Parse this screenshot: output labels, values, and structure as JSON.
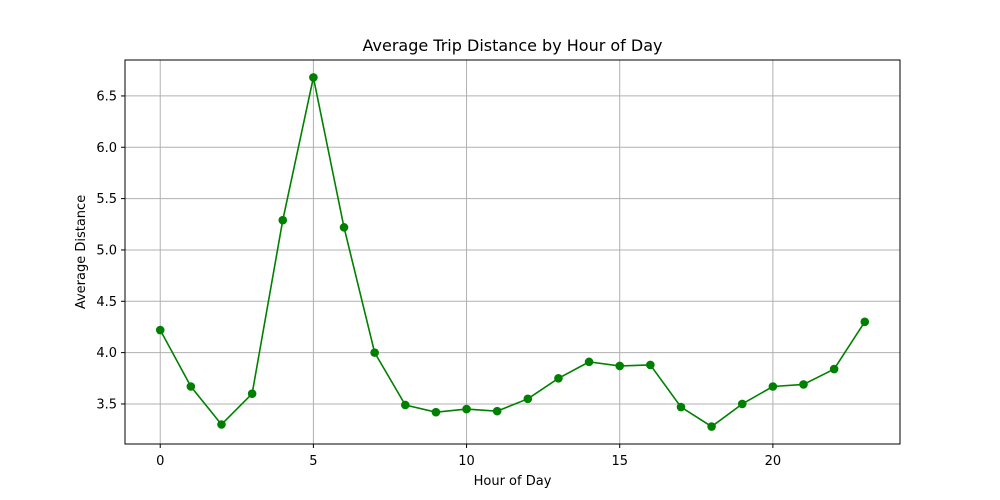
{
  "chart_data": {
    "type": "line",
    "title": "Average Trip Distance by Hour of Day",
    "xlabel": "Hour of Day",
    "ylabel": "Average Distance",
    "xlim": [
      -1.15,
      24.15
    ],
    "ylim": [
      3.11,
      6.85
    ],
    "grid": true,
    "xticks": [
      0,
      5,
      10,
      15,
      20
    ],
    "xtick_labels": [
      "0",
      "5",
      "10",
      "15",
      "20"
    ],
    "yticks": [
      3.5,
      4.0,
      4.5,
      5.0,
      5.5,
      6.0,
      6.5
    ],
    "ytick_labels": [
      "3.5",
      "4.0",
      "4.5",
      "5.0",
      "5.5",
      "6.0",
      "6.5"
    ],
    "line_color": "#008000",
    "grid_color": "#b0b0b0",
    "series": [
      {
        "x": [
          0,
          1,
          2,
          3,
          4,
          5,
          6,
          7,
          8,
          9,
          10,
          11,
          12,
          13,
          14,
          15,
          16,
          17,
          18,
          19,
          20,
          21,
          22,
          23
        ],
        "values": [
          4.22,
          3.67,
          3.3,
          3.6,
          5.29,
          6.68,
          5.22,
          4.0,
          3.49,
          3.42,
          3.45,
          3.43,
          3.55,
          3.75,
          3.91,
          3.87,
          3.88,
          3.47,
          3.28,
          3.5,
          3.67,
          3.69,
          3.84,
          4.3
        ]
      }
    ]
  }
}
